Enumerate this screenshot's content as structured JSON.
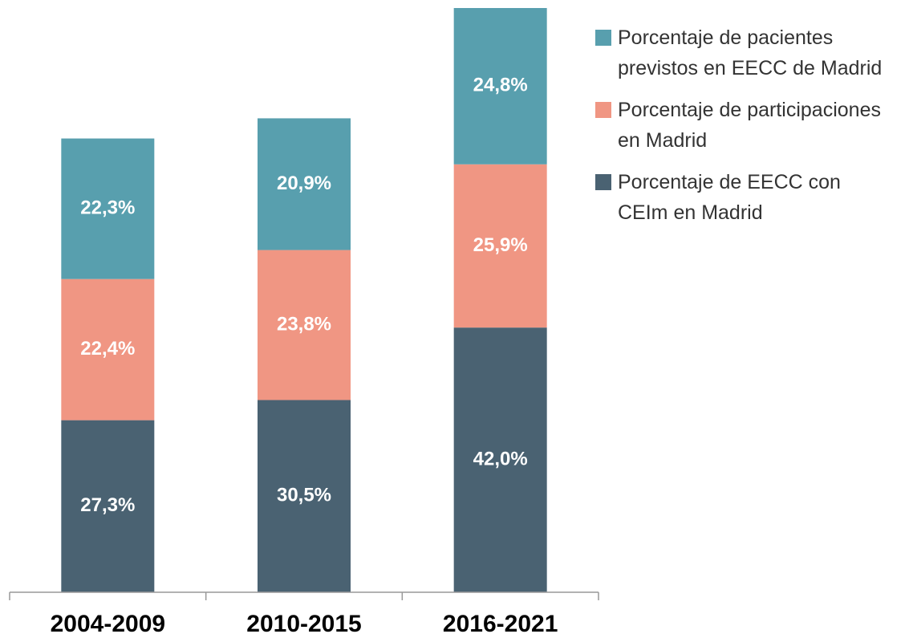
{
  "chart_data": {
    "type": "stacked_bar",
    "categories": [
      "2004-2009",
      "2010-2015",
      "2016-2021"
    ],
    "series": [
      {
        "name": "Porcentaje de EECC con CEIm en Madrid",
        "color": "#4a6272",
        "values": [
          27.3,
          30.5,
          42.0
        ],
        "value_labels": [
          "27,3%",
          "30,5%",
          "42,0%"
        ]
      },
      {
        "name": "Porcentaje de participaciones en Madrid",
        "color": "#f09683",
        "values": [
          22.4,
          23.8,
          25.9
        ],
        "value_labels": [
          "22,4%",
          "23,8%",
          "25,9%"
        ]
      },
      {
        "name": "Porcentaje de pacientes previstos en EECC de Madrid",
        "color": "#589fae",
        "values": [
          22.3,
          20.9,
          24.8
        ],
        "value_labels": [
          "22,3%",
          "20,9%",
          "24,8%"
        ]
      }
    ],
    "legend": "right"
  }
}
